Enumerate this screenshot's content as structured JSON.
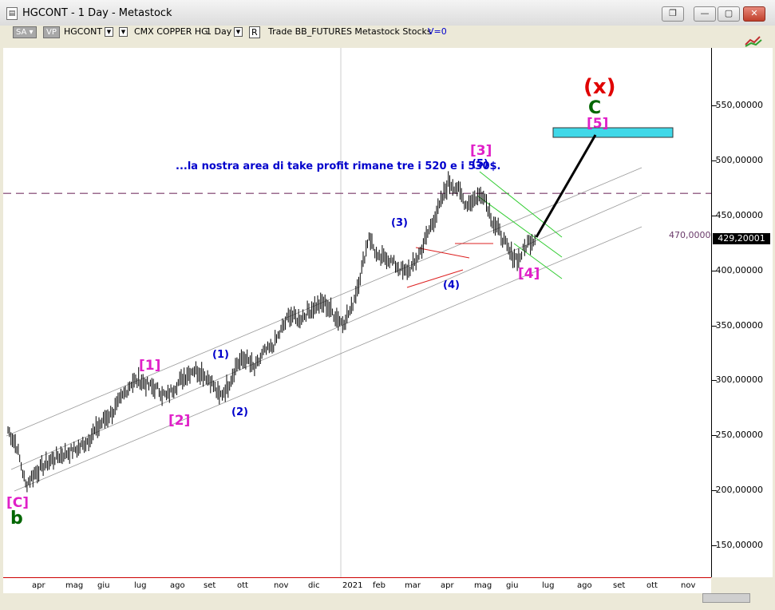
{
  "window": {
    "title": "HGCONT - 1 Day - Metastock",
    "buttons": [
      "❐",
      "—",
      "▢",
      "✕"
    ]
  },
  "toolbar": {
    "sa": "SA",
    "vp": "VP",
    "symbol": "HGCONT",
    "name": "CMX COPPER HG",
    "period": "1 Day",
    "r": "R",
    "info": "Trade  BB_FUTURES  Metastock  Stocks",
    "v": "V=0"
  },
  "chart_data": {
    "type": "line",
    "title": "",
    "y_ticks": [
      "550,00000",
      "500,00000",
      "450,00000",
      "400,00000",
      "350,00000",
      "300,00000",
      "250,00000",
      "200,00000",
      "150,00000"
    ],
    "x_ticks": [
      "apr",
      "mag",
      "giu",
      "lug",
      "ago",
      "set",
      "ott",
      "nov",
      "dic",
      "2021",
      "feb",
      "mar",
      "apr",
      "mag",
      "giu",
      "lug",
      "ago",
      "set",
      "ott",
      "nov"
    ],
    "current_price": "429,20001",
    "level": "470,00000",
    "series": [
      {
        "values": [
          255,
          240,
          205,
          215,
          222,
          228,
          232,
          235,
          238,
          245,
          255,
          265,
          272,
          285,
          298,
          300,
          295,
          292,
          285,
          295,
          303,
          310,
          307,
          300,
          285,
          295,
          315,
          320,
          310,
          325,
          330,
          345,
          360,
          355,
          362,
          368,
          370,
          360,
          352,
          365,
          395,
          432,
          410,
          412,
          405,
          398,
          404,
          420,
          440,
          458,
          480,
          475,
          460,
          465,
          470,
          445,
          432,
          415,
          410,
          425,
          430
        ]
      }
    ]
  },
  "annotations": {
    "note": "...la nostra area di take profit rimane tre i 520 e i 530$.",
    "x_big": "(x)",
    "c_green": "C",
    "w5_pink": "[5]",
    "w3_pink": "[3]",
    "w5_blue": "(5)",
    "w3_blue": "(3)",
    "w4_blue": "(4)",
    "w4_pink": "[4]",
    "w1_pink": "[1]",
    "w2_pink": "[2]",
    "w1_blue": "(1)",
    "w2_blue": "(2)",
    "c_pink": "[C]",
    "b_green": "b"
  },
  "colors": {
    "pink": "#e020c8",
    "blue": "#0000cc",
    "red": "#e00000",
    "green": "#006600",
    "target": "#40d8e8"
  }
}
